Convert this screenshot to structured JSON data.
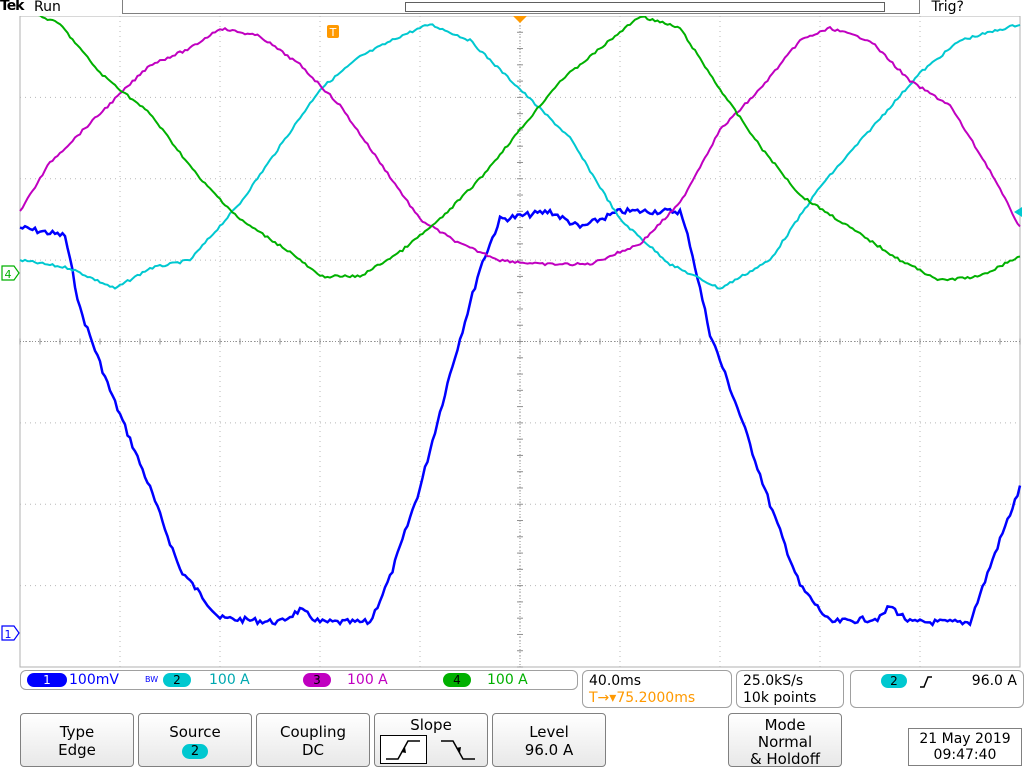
{
  "header": {
    "brand": "Tek",
    "run_status": "Run",
    "trigger_status": "Trig?"
  },
  "markers": {
    "trigger_position": "T",
    "ch4_ground": "4",
    "ch1_ground": "1"
  },
  "readout": {
    "ch1": {
      "num": "1",
      "scale": "100mV",
      "bw": "BW",
      "color": "#0000ff"
    },
    "ch2": {
      "num": "2",
      "scale": "100 A",
      "color": "#00c8d0"
    },
    "ch3": {
      "num": "3",
      "scale": "100 A",
      "color": "#c000c0"
    },
    "ch4": {
      "num": "4",
      "scale": "100 A",
      "color": "#00b000"
    }
  },
  "timebase": {
    "scale": "40.0ms",
    "delay": "75.2000ms",
    "delay_prefix": "T→▾"
  },
  "acquisition": {
    "sample_rate": "25.0kS/s",
    "record_length": "10k points"
  },
  "trigger": {
    "source_num": "2",
    "slope_icon": "rising-edge-icon",
    "level": "96.0 A"
  },
  "menu": {
    "type": {
      "title": "Type",
      "value": "Edge"
    },
    "source": {
      "title": "Source",
      "value": "2"
    },
    "coupling": {
      "title": "Coupling",
      "value": "DC"
    },
    "slope": {
      "title": "Slope"
    },
    "level": {
      "title": "Level",
      "value": "96.0 A"
    },
    "mode": {
      "title": "Mode",
      "value1": "Normal",
      "value2": "& Holdoff"
    }
  },
  "datetime": {
    "date": "21 May 2019",
    "time": "09:47:40"
  },
  "chart_data": {
    "type": "line",
    "xlabel": "",
    "ylabel": "",
    "grid": true,
    "x_divisions": 10,
    "y_divisions": 8,
    "series": [
      {
        "name": "1",
        "color": "#0000ff",
        "points": [
          [
            0,
            1.4
          ],
          [
            0.45,
            1.3
          ],
          [
            0.6,
            0.4
          ],
          [
            0.9,
            -0.6
          ],
          [
            1.3,
            -1.8
          ],
          [
            1.6,
            -2.8
          ],
          [
            2.0,
            -3.4
          ],
          [
            2.6,
            -3.45
          ],
          [
            2.8,
            -3.3
          ],
          [
            3.0,
            -3.45
          ],
          [
            3.5,
            -3.45
          ],
          [
            3.7,
            -2.9
          ],
          [
            4.0,
            -1.8
          ],
          [
            4.3,
            -0.4
          ],
          [
            4.6,
            0.9
          ],
          [
            4.8,
            1.5
          ],
          [
            5.3,
            1.6
          ],
          [
            5.6,
            1.4
          ],
          [
            6.0,
            1.6
          ],
          [
            6.6,
            1.6
          ],
          [
            6.7,
            1.2
          ],
          [
            6.9,
            0.1
          ],
          [
            7.2,
            -0.9
          ],
          [
            7.5,
            -2.0
          ],
          [
            7.8,
            -3.0
          ],
          [
            8.1,
            -3.45
          ],
          [
            8.6,
            -3.4
          ],
          [
            8.7,
            -3.25
          ],
          [
            8.9,
            -3.45
          ],
          [
            9.5,
            -3.45
          ],
          [
            9.75,
            -2.6
          ],
          [
            10,
            -1.8
          ]
        ]
      },
      {
        "name": "2",
        "color": "#00c8d0",
        "points": [
          [
            0,
            1.0
          ],
          [
            0.5,
            0.9
          ],
          [
            0.95,
            0.65
          ],
          [
            1.3,
            0.9
          ],
          [
            1.7,
            1.0
          ],
          [
            2.2,
            1.7
          ],
          [
            2.6,
            2.4
          ],
          [
            3.0,
            3.1
          ],
          [
            3.4,
            3.5
          ],
          [
            3.8,
            3.75
          ],
          [
            4.1,
            3.9
          ],
          [
            4.5,
            3.7
          ],
          [
            5.0,
            3.1
          ],
          [
            5.5,
            2.5
          ],
          [
            6.0,
            1.5
          ],
          [
            6.5,
            0.95
          ],
          [
            7.0,
            0.65
          ],
          [
            7.5,
            1.0
          ],
          [
            8.0,
            1.9
          ],
          [
            8.5,
            2.6
          ],
          [
            9.0,
            3.3
          ],
          [
            9.4,
            3.7
          ],
          [
            10,
            3.9
          ]
        ]
      },
      {
        "name": "3",
        "color": "#c000c0",
        "points": [
          [
            0,
            1.6
          ],
          [
            0.3,
            2.2
          ],
          [
            0.8,
            2.8
          ],
          [
            1.3,
            3.4
          ],
          [
            1.7,
            3.6
          ],
          [
            2.0,
            3.85
          ],
          [
            2.4,
            3.75
          ],
          [
            2.8,
            3.4
          ],
          [
            3.2,
            2.9
          ],
          [
            3.6,
            2.2
          ],
          [
            4.0,
            1.5
          ],
          [
            4.4,
            1.2
          ],
          [
            4.8,
            1.0
          ],
          [
            5.2,
            0.95
          ],
          [
            5.7,
            0.95
          ],
          [
            6.2,
            1.2
          ],
          [
            6.6,
            1.7
          ],
          [
            7.0,
            2.6
          ],
          [
            7.4,
            3.1
          ],
          [
            7.8,
            3.7
          ],
          [
            8.1,
            3.85
          ],
          [
            8.5,
            3.7
          ],
          [
            8.9,
            3.2
          ],
          [
            9.3,
            2.9
          ],
          [
            9.7,
            2.1
          ],
          [
            10,
            1.4
          ]
        ]
      },
      {
        "name": "4",
        "color": "#00b000",
        "points": [
          [
            0,
            4.1
          ],
          [
            0.4,
            3.9
          ],
          [
            0.8,
            3.3
          ],
          [
            1.3,
            2.8
          ],
          [
            1.8,
            2.0
          ],
          [
            2.2,
            1.5
          ],
          [
            2.7,
            1.1
          ],
          [
            3.0,
            0.8
          ],
          [
            3.4,
            0.8
          ],
          [
            3.8,
            1.1
          ],
          [
            4.2,
            1.5
          ],
          [
            4.6,
            2.0
          ],
          [
            5.0,
            2.6
          ],
          [
            5.4,
            3.2
          ],
          [
            5.8,
            3.6
          ],
          [
            6.2,
            4.0
          ],
          [
            6.6,
            3.85
          ],
          [
            7.0,
            3.1
          ],
          [
            7.4,
            2.4
          ],
          [
            7.8,
            1.8
          ],
          [
            8.3,
            1.4
          ],
          [
            8.8,
            1.0
          ],
          [
            9.2,
            0.75
          ],
          [
            9.6,
            0.8
          ],
          [
            10,
            1.05
          ]
        ]
      }
    ]
  }
}
